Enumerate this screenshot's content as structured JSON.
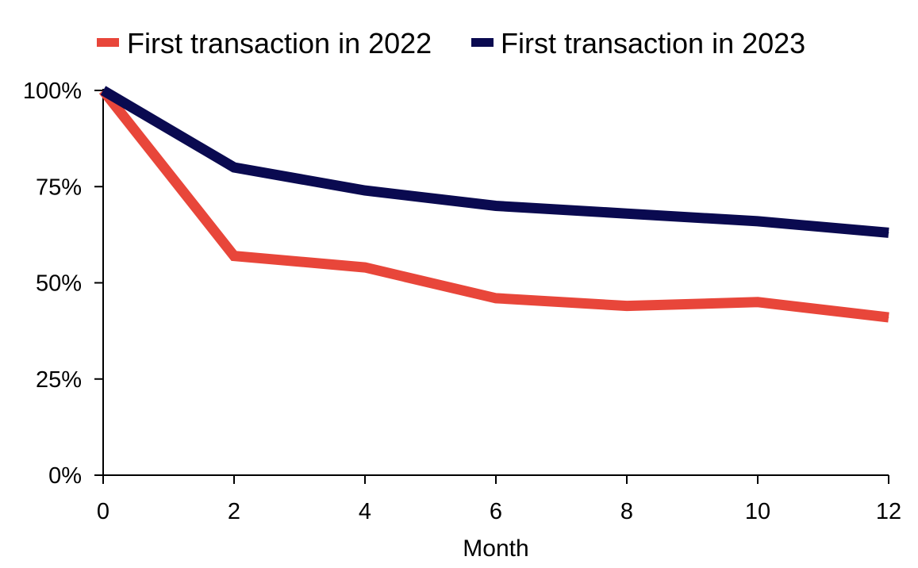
{
  "chart_data": {
    "type": "line",
    "title": "",
    "xlabel": "Month",
    "ylabel": "",
    "x": [
      0,
      2,
      4,
      6,
      8,
      10,
      12
    ],
    "xlim": [
      0,
      12
    ],
    "ylim": [
      0,
      100
    ],
    "x_ticks": [
      0,
      2,
      4,
      6,
      8,
      10,
      12
    ],
    "y_ticks": [
      0,
      25,
      50,
      75,
      100
    ],
    "x_tick_labels": [
      "0",
      "2",
      "4",
      "6",
      "8",
      "10",
      "12"
    ],
    "y_tick_labels": [
      "0%",
      "25%",
      "50%",
      "75%",
      "100%"
    ],
    "grid": false,
    "legend_position": "top",
    "series": [
      {
        "name": "First transaction in 2022",
        "color": "#e8463a",
        "values": [
          100,
          57,
          54,
          46,
          44,
          45,
          41
        ]
      },
      {
        "name": "First transaction in 2023",
        "color": "#0a0a50",
        "values": [
          100,
          80,
          74,
          70,
          68,
          66,
          63
        ]
      }
    ]
  }
}
